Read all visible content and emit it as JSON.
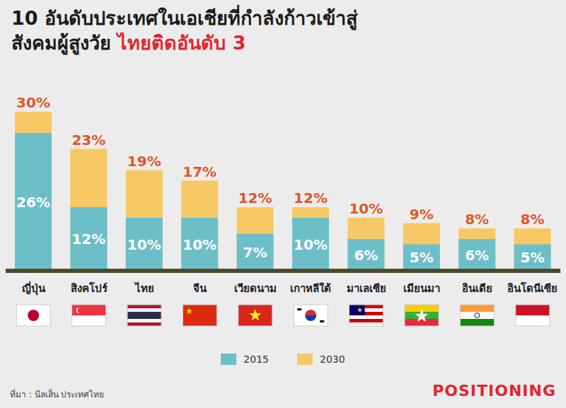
{
  "chart_data": {
    "type": "bar",
    "title": "10 อันดับประเทศในเอเชียที่กำลังก้าวเข้าสู่สังคมผู้สูงวัย",
    "subtitle": "ไทยติดอันดับ 3",
    "categories": [
      "ญี่ปุ่น",
      "สิงคโปร์",
      "ไทย",
      "จีน",
      "เวียดนาม",
      "เกาหลีใต้",
      "มาเลเซีย",
      "เมียนมา",
      "อินเดีย",
      "อินโดนีเซีย"
    ],
    "series": [
      {
        "name": "2015",
        "color": "#6cbfc9",
        "values": [
          26,
          12,
          10,
          10,
          7,
          10,
          6,
          5,
          6,
          5
        ],
        "value_labels": [
          "26%",
          "12%",
          "10%",
          "10%",
          "7%",
          "10%",
          "6%",
          "5%",
          "6%",
          "5%"
        ]
      },
      {
        "name": "2030",
        "color": "#f7c964",
        "values": [
          30,
          23,
          19,
          17,
          12,
          12,
          10,
          9,
          8,
          8
        ],
        "value_labels": [
          "30%",
          "23%",
          "19%",
          "17%",
          "12%",
          "12%",
          "10%",
          "9%",
          "8%",
          "8%"
        ]
      }
    ],
    "ylim": [
      0,
      30
    ],
    "tick_labels": "x",
    "data_labels": true,
    "legend": "bottom",
    "source": "ที่มา : นีลเส็น ประเทศไทย",
    "brand": "POSITIONING"
  }
}
